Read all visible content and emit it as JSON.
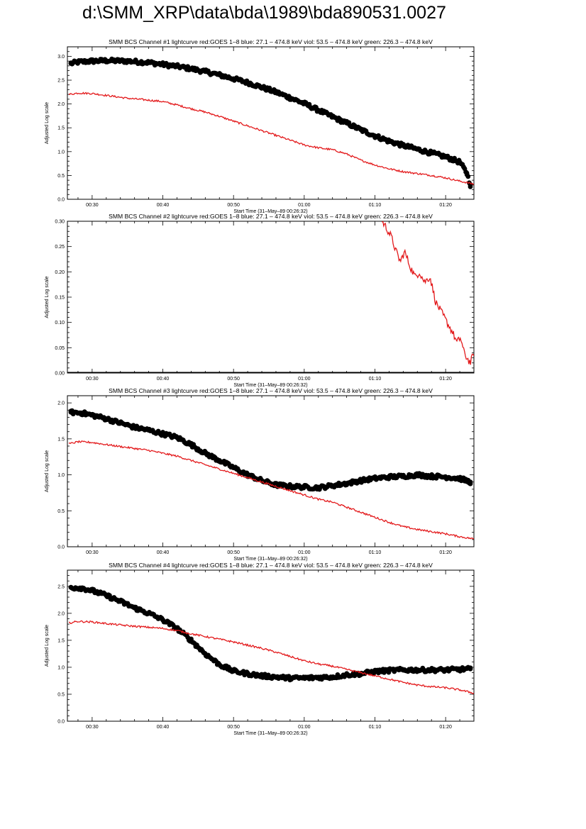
{
  "page_title": "d:\\SMM_XRP\\data\\bda\\1989\\bda890531.0027",
  "colors": {
    "goes": "#e31a1c",
    "bcs": "#000000",
    "axes": "#000000"
  },
  "chart_data": [
    {
      "type": "scatter",
      "title": "SMM BCS Channel #1 lightcurve  red:GOES 1–8  blue: 27.1 – 474.8 keV  viol: 53.5 – 474.8 keV  green: 226.3 – 474.8 keV",
      "xlabel": "Start Time (31–May–89 00:26:32)",
      "ylabel": "Adjusted Log scale",
      "x_unit": "minutes after 00:00 UT",
      "xlim": [
        26.5,
        84.0
      ],
      "ylim": [
        0,
        3.2
      ],
      "x_ticks": [
        30,
        40,
        50,
        60,
        70,
        80
      ],
      "x_tick_labels": [
        "00:30",
        "00:40",
        "00:50",
        "01:00",
        "01:10",
        "01:20"
      ],
      "y_ticks": [
        0.0,
        0.5,
        1.0,
        1.5,
        2.0,
        2.5,
        3.0
      ],
      "y_tick_labels": [
        "0.0",
        "0.5",
        "1.0",
        "1.5",
        "2.0",
        "2.5",
        "3.0"
      ],
      "series": [
        {
          "color": "#000000",
          "style": "dots",
          "x": [
            27.0,
            28,
            30,
            32,
            35,
            38,
            40,
            42,
            44,
            46,
            48,
            50,
            52,
            54,
            56,
            58,
            60,
            62,
            64,
            66,
            68,
            70,
            72,
            74,
            76,
            78,
            80,
            82,
            83.0,
            83.5
          ],
          "y": [
            2.85,
            2.88,
            2.9,
            2.91,
            2.9,
            2.87,
            2.83,
            2.79,
            2.74,
            2.68,
            2.61,
            2.53,
            2.45,
            2.35,
            2.25,
            2.13,
            2.01,
            1.87,
            1.73,
            1.6,
            1.46,
            1.33,
            1.22,
            1.13,
            1.05,
            0.97,
            0.89,
            0.78,
            0.55,
            0.3
          ]
        },
        {
          "color": "#e31a1c",
          "style": "line",
          "x": [
            26.7,
            28,
            30,
            32,
            35,
            38,
            40,
            42,
            44,
            46,
            48,
            50,
            52,
            54,
            56,
            58,
            60,
            62,
            64,
            66,
            68,
            70,
            72,
            74,
            76,
            78,
            80,
            82,
            84
          ],
          "y": [
            2.2,
            2.23,
            2.22,
            2.18,
            2.12,
            2.08,
            2.05,
            1.98,
            1.9,
            1.83,
            1.74,
            1.64,
            1.54,
            1.44,
            1.34,
            1.24,
            1.14,
            1.08,
            1.04,
            0.95,
            0.82,
            0.72,
            0.64,
            0.58,
            0.54,
            0.5,
            0.45,
            0.38,
            0.32
          ]
        }
      ]
    },
    {
      "type": "line",
      "title": "SMM BCS Channel #2 lightcurve  red:GOES 1–8  blue: 27.1 – 474.8 keV  viol: 53.5 – 474.8 keV  green: 226.3 – 474.8 keV",
      "xlabel": "Start Time (31–May–89 00:26:32)",
      "ylabel": "Adjusted Log scale",
      "x_unit": "minutes after 00:00 UT",
      "xlim": [
        26.5,
        84.0
      ],
      "ylim": [
        0,
        0.3
      ],
      "x_ticks": [
        30,
        40,
        50,
        60,
        70,
        80
      ],
      "x_tick_labels": [
        "00:30",
        "00:40",
        "00:50",
        "01:00",
        "01:10",
        "01:20"
      ],
      "y_ticks": [
        0.0,
        0.05,
        0.1,
        0.15,
        0.2,
        0.25,
        0.3
      ],
      "y_tick_labels": [
        "0.00",
        "0.05",
        "0.10",
        "0.15",
        "0.20",
        "0.25",
        "0.30"
      ],
      "series": [
        {
          "color": "#000000",
          "style": "line",
          "x": [
            26.5,
            84.0
          ],
          "y": [
            0.0,
            0.0
          ]
        },
        {
          "color": "#e31a1c",
          "style": "line",
          "x": [
            71.0,
            71.5,
            72.3,
            73.0,
            73.6,
            74.2,
            75.0,
            75.7,
            76.3,
            77.0,
            77.8,
            78.6,
            79.4,
            80.2,
            81.0,
            81.6,
            82.1,
            82.6,
            83.0,
            83.5,
            84.0
          ],
          "y": [
            0.3,
            0.29,
            0.27,
            0.24,
            0.22,
            0.24,
            0.21,
            0.19,
            0.2,
            0.18,
            0.19,
            0.14,
            0.12,
            0.1,
            0.08,
            0.06,
            0.07,
            0.04,
            0.03,
            0.02,
            0.04
          ]
        }
      ]
    },
    {
      "type": "scatter",
      "title": "SMM BCS Channel #3 lightcurve  red:GOES 1–8  blue: 27.1 – 474.8 keV  viol: 53.5 – 474.8 keV  green: 226.3 – 474.8 keV",
      "xlabel": "Start Time (31–May–89 00:26:32)",
      "ylabel": "Adjusted Log scale",
      "x_unit": "minutes after 00:00 UT",
      "xlim": [
        26.5,
        84.0
      ],
      "ylim": [
        0,
        2.1
      ],
      "x_ticks": [
        30,
        40,
        50,
        60,
        70,
        80
      ],
      "x_tick_labels": [
        "00:30",
        "00:40",
        "00:50",
        "01:00",
        "01:10",
        "01:20"
      ],
      "y_ticks": [
        0.0,
        0.5,
        1.0,
        1.5,
        2.0
      ],
      "y_tick_labels": [
        "0.0",
        "0.5",
        "1.0",
        "1.5",
        "2.0"
      ],
      "series": [
        {
          "color": "#000000",
          "style": "dots",
          "x": [
            27.0,
            28.5,
            30,
            32,
            34,
            36,
            38,
            40,
            42,
            44,
            46,
            48,
            50,
            52,
            54,
            56,
            58,
            60,
            62,
            64,
            66,
            68,
            70,
            72,
            74,
            76,
            78,
            80,
            82,
            83.5
          ],
          "y": [
            1.87,
            1.86,
            1.83,
            1.78,
            1.72,
            1.66,
            1.62,
            1.57,
            1.52,
            1.42,
            1.3,
            1.2,
            1.1,
            1.0,
            0.92,
            0.86,
            0.84,
            0.83,
            0.82,
            0.85,
            0.88,
            0.92,
            0.95,
            0.97,
            0.98,
            1.0,
            0.98,
            0.97,
            0.95,
            0.9
          ]
        },
        {
          "color": "#e31a1c",
          "style": "line",
          "x": [
            26.7,
            28,
            30,
            32,
            35,
            38,
            40,
            42,
            44,
            46,
            48,
            50,
            52,
            54,
            56,
            58,
            60,
            62,
            64,
            66,
            68,
            70,
            72,
            74,
            76,
            78,
            80,
            82,
            84
          ],
          "y": [
            1.43,
            1.46,
            1.45,
            1.42,
            1.38,
            1.34,
            1.3,
            1.26,
            1.2,
            1.14,
            1.08,
            1.02,
            0.96,
            0.9,
            0.84,
            0.78,
            0.72,
            0.66,
            0.62,
            0.55,
            0.48,
            0.41,
            0.34,
            0.28,
            0.24,
            0.21,
            0.18,
            0.14,
            0.11
          ]
        }
      ]
    },
    {
      "type": "scatter",
      "title": "SMM BCS Channel #4 lightcurve  red:GOES 1–8  blue: 27.1 – 474.8 keV  viol: 53.5 – 474.8 keV  green: 226.3 – 474.8 keV",
      "xlabel": "Start Time (31–May–89 00:26:32)",
      "ylabel": "Adjusted Log scale",
      "x_unit": "minutes after 00:00 UT",
      "xlim": [
        26.5,
        84.0
      ],
      "ylim": [
        0,
        2.8
      ],
      "x_ticks": [
        30,
        40,
        50,
        60,
        70,
        80
      ],
      "x_tick_labels": [
        "00:30",
        "00:40",
        "00:50",
        "01:00",
        "01:10",
        "01:20"
      ],
      "y_ticks": [
        0.0,
        0.5,
        1.0,
        1.5,
        2.0,
        2.5
      ],
      "y_tick_labels": [
        "0.0",
        "0.5",
        "1.0",
        "1.5",
        "2.0",
        "2.5"
      ],
      "series": [
        {
          "color": "#000000",
          "style": "dots",
          "x": [
            27.0,
            28.5,
            30,
            32,
            34,
            36,
            38,
            40,
            42,
            44,
            46,
            48,
            50,
            52,
            54,
            56,
            58,
            60,
            62,
            64,
            66,
            68,
            70,
            72,
            74,
            76,
            78,
            80,
            82,
            83.5
          ],
          "y": [
            2.48,
            2.47,
            2.42,
            2.33,
            2.22,
            2.1,
            2.0,
            1.88,
            1.72,
            1.5,
            1.25,
            1.05,
            0.93,
            0.88,
            0.84,
            0.82,
            0.8,
            0.8,
            0.81,
            0.82,
            0.86,
            0.88,
            0.92,
            0.94,
            0.95,
            0.95,
            0.95,
            0.95,
            0.96,
            0.97
          ]
        },
        {
          "color": "#e31a1c",
          "style": "line",
          "x": [
            26.7,
            28,
            30,
            32,
            35,
            38,
            40,
            42,
            44,
            46,
            48,
            50,
            52,
            54,
            56,
            58,
            60,
            62,
            64,
            66,
            68,
            70,
            72,
            74,
            76,
            78,
            80,
            82,
            84
          ],
          "y": [
            1.82,
            1.85,
            1.84,
            1.81,
            1.77,
            1.74,
            1.72,
            1.68,
            1.62,
            1.57,
            1.52,
            1.47,
            1.41,
            1.35,
            1.28,
            1.2,
            1.12,
            1.06,
            1.02,
            0.96,
            0.9,
            0.84,
            0.78,
            0.72,
            0.67,
            0.64,
            0.62,
            0.58,
            0.52
          ]
        }
      ]
    }
  ]
}
